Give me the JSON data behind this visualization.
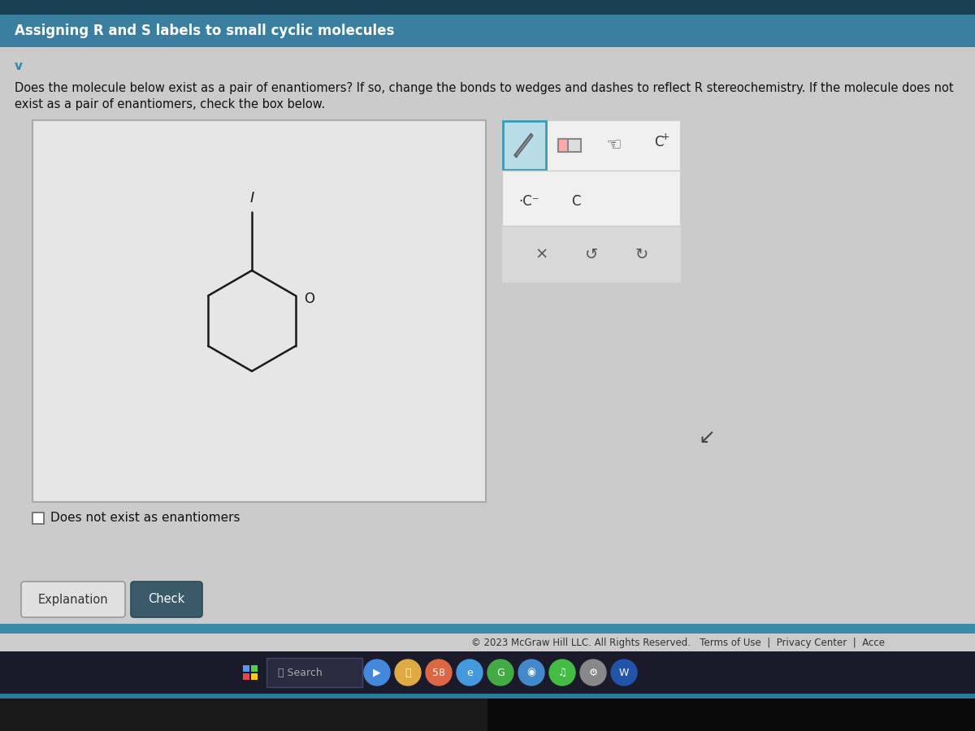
{
  "title": "Assigning R and S labels to small cyclic molecules",
  "question_line1": "Does the molecule below exist as a pair of enantiomers? If so, change the bonds to wedges and dashes to reflect R stereochemistry. If the molecule does not",
  "question_line2": "exist as a pair of enantiomers, check the box below.",
  "checkbox_label": "Does not exist as enantiomers",
  "btn1": "Explanation",
  "btn2": "Check",
  "bg_color": "#cbcbcb",
  "header_color": "#3a7fa0",
  "header_text_color": "#ffffff",
  "dark_strip_color": "#1a4055",
  "drawing_box_bg": "#e6e6e6",
  "drawing_box_border": "#aaaaaa",
  "toolbar_bg": "#f0f0f0",
  "toolbar_border": "#cccccc",
  "toolbar_selected_bg": "#b8dde8",
  "toolbar_selected_border": "#3a9ab8",
  "molecule_color": "#1a1a1a",
  "footer_text": "© 2023 McGraw Hill LLC. All Rights Reserved.",
  "footer_links": "Terms of Use  |  Privacy Center  |  Acce",
  "taskbar_bg": "#1a1a2a",
  "taskbar_icon_row_bg": "#252535",
  "btn1_bg": "#e0e0e0",
  "btn1_border": "#999999",
  "btn2_bg": "#3a5a6a",
  "btn2_text": "#ffffff",
  "copyright_color": "#555555",
  "page_bg_lower": "#111111",
  "chevron_color": "#2a8aaa"
}
